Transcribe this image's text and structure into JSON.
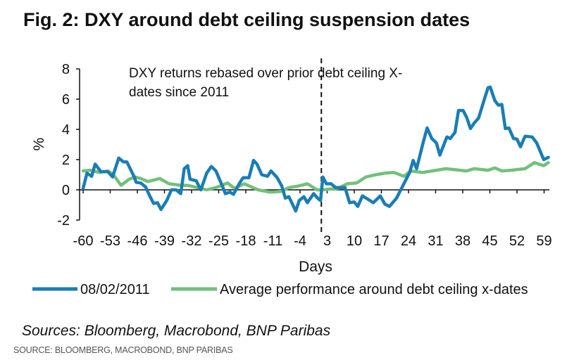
{
  "title": "Fig. 2: DXY around debt ceiling suspension dates",
  "sources_italic": "Sources: Bloomberg, Macrobond, BNP Paribas",
  "source_caption": "SOURCE: BLOOMBERG, MACROBOND, BNP PARIBAS",
  "chart_data": {
    "type": "line",
    "title": "Fig. 2: DXY around debt ceiling suspension dates",
    "xlabel": "Days",
    "ylabel": "%",
    "xlim": [
      -60,
      60
    ],
    "ylim": [
      -2,
      8
    ],
    "x_ticks": [
      -60,
      -53,
      -46,
      -39,
      -32,
      -25,
      -18,
      -11,
      -4,
      3,
      10,
      17,
      24,
      31,
      38,
      45,
      52,
      59
    ],
    "y_ticks": [
      -2,
      0,
      2,
      4,
      6,
      8
    ],
    "grid": false,
    "legend_position": "bottom",
    "annotation": [
      "DXY returns rebased over prior debt ceiling X-",
      "dates since 2011"
    ],
    "vertical_marker_day": 1.5,
    "colors": {
      "blue": "#1a7db5",
      "green": "#72c07a"
    },
    "series": [
      {
        "name": "08/02/2011",
        "color": "#1a7db5",
        "x": [
          -60,
          -59,
          -57.8,
          -56.9,
          -55.4,
          -53.6,
          -52.4,
          -50.8,
          -49.6,
          -48.7,
          -46.9,
          -46.3,
          -45.1,
          -43.9,
          -42.7,
          -41.8,
          -40.8,
          -39.9,
          -38.4,
          -37.2,
          -36,
          -34.8,
          -33.9,
          -33,
          -32.4,
          -30.8,
          -29.6,
          -28.1,
          -26.9,
          -25.7,
          -23.9,
          -23.3,
          -22.1,
          -21.2,
          -19.6,
          -18.7,
          -17.2,
          -16,
          -15.1,
          -13.9,
          -12.4,
          -11.5,
          -9.9,
          -8.7,
          -7.8,
          -6.9,
          -5.1,
          -4.2,
          -3,
          -2.1,
          -0.5,
          0.7,
          1.3,
          1.9,
          2.8,
          4.0,
          5.2,
          7.6,
          8.8,
          10.0,
          10.9,
          12.1,
          13.4,
          14.9,
          16.7,
          17.9,
          19.1,
          20.9,
          22.8,
          24.3,
          25.2,
          26.1,
          27.6,
          28.8,
          30.0,
          31.2,
          32.1,
          33.9,
          34.8,
          36.0,
          36.9,
          38.1,
          39.0,
          40.0,
          40.9,
          42.1,
          43.3,
          44.5,
          45.1,
          46.3,
          47.2,
          48.1,
          49.0,
          49.9,
          51.1,
          52.0,
          52.9,
          54.1,
          55.9,
          57.1,
          58.9,
          60.1
        ],
        "y": [
          0.1,
          1.1,
          0.9,
          1.7,
          1.2,
          1.2,
          0.85,
          2.1,
          1.85,
          1.85,
          0.9,
          0.5,
          0.45,
          0.2,
          -0.45,
          -0.9,
          -0.85,
          -1.3,
          -0.7,
          0,
          0,
          -0.25,
          1.4,
          1.6,
          0.7,
          0.6,
          0,
          1.1,
          1.55,
          1.25,
          0.15,
          -0.25,
          -0.15,
          -0.3,
          0.45,
          0.8,
          0.8,
          1.95,
          1.7,
          1.0,
          0.9,
          1.25,
          0.8,
          0.25,
          -0.55,
          -0.45,
          -1.4,
          -0.7,
          -0.45,
          -0.85,
          -0.25,
          -0.6,
          -0.7,
          0.85,
          0.4,
          0.4,
          0.15,
          0.15,
          -0.85,
          -0.8,
          -1.1,
          -0.4,
          -0.6,
          -0.85,
          -0.4,
          -0.95,
          -1.1,
          -0.55,
          0.4,
          1.15,
          1.95,
          1.4,
          2.95,
          4.1,
          3.4,
          3.1,
          2.3,
          3.5,
          3.4,
          3.8,
          5.25,
          5.25,
          4.8,
          4.05,
          4.4,
          4.75,
          5.75,
          6.75,
          6.8,
          5.9,
          5.6,
          5.65,
          4.05,
          4.1,
          3.4,
          3.35,
          2.85,
          3.55,
          3.5,
          3.1,
          2.0,
          2.15
        ]
      },
      {
        "name": "Average performance around debt ceiling x-dates",
        "color": "#72c07a",
        "x": [
          -60,
          -58.2,
          -55.8,
          -53.6,
          -52.2,
          -50.2,
          -48.1,
          -46.6,
          -45.1,
          -43.3,
          -40.2,
          -37.8,
          -34.8,
          -33,
          -30.5,
          -28.1,
          -25.7,
          -22.7,
          -20.9,
          -18.4,
          -14.8,
          -11.8,
          -8.7,
          -6.9,
          -4.5,
          -2.1,
          0.4,
          1.6,
          5.8,
          8.2,
          10.6,
          13.0,
          15.5,
          17.9,
          20.3,
          22.8,
          24.6,
          27.6,
          31.2,
          33.7,
          37.3,
          39.0,
          40.9,
          44.5,
          46.3,
          48.1,
          50.5,
          54.1,
          56.5,
          58.9,
          60.1
        ],
        "y": [
          1.25,
          1.3,
          1.15,
          1.25,
          1.0,
          0.3,
          0.7,
          0.85,
          0.75,
          0.55,
          0.75,
          0.4,
          0.3,
          0.3,
          0.15,
          0,
          0.15,
          0.45,
          0.1,
          0.4,
          0,
          -0.15,
          -0.1,
          0.15,
          0.25,
          0.4,
          0,
          0,
          0.1,
          0.4,
          0.45,
          0.85,
          1.0,
          1.1,
          1.15,
          0.9,
          1.25,
          1.15,
          1.3,
          1.4,
          1.3,
          1.25,
          1.4,
          1.3,
          1.45,
          1.25,
          1.3,
          1.4,
          1.8,
          1.6,
          1.8
        ]
      }
    ]
  }
}
